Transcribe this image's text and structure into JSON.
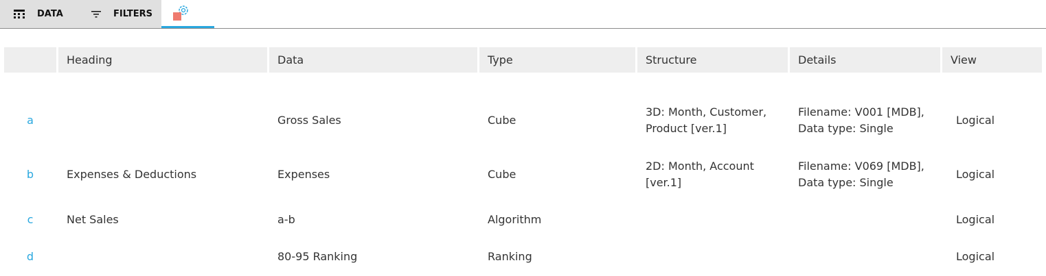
{
  "tabs": [
    {
      "label": "DATA",
      "icon": "grid-icon"
    },
    {
      "label": "FILTERS",
      "icon": "filter-icon"
    },
    {
      "icon": "settings-icon",
      "active": true
    }
  ],
  "table": {
    "columns": [
      "",
      "Heading",
      "Data",
      "Type",
      "Structure",
      "Details",
      "View"
    ],
    "rows": [
      {
        "id": "a",
        "heading": "",
        "data": "Gross Sales",
        "type": "Cube",
        "structure": "3D: Month, Customer, Product [ver.1]",
        "details": "Filename: V001 [MDB], Data type: Single",
        "view": "Logical"
      },
      {
        "id": "b",
        "heading": "Expenses & Deductions",
        "data": "Expenses",
        "type": "Cube",
        "structure": "2D: Month, Account [ver.1]",
        "details": "Filename: V069 [MDB], Data type: Single",
        "view": "Logical"
      },
      {
        "id": "c",
        "heading": "Net Sales",
        "data": "a-b",
        "type": "Algorithm",
        "structure": "",
        "details": "",
        "view": "Logical"
      },
      {
        "id": "d",
        "heading": "",
        "data": "80-95 Ranking",
        "type": "Ranking",
        "structure": "",
        "details": "",
        "view": "Logical"
      }
    ]
  },
  "colors": {
    "accent": "#2aa8df",
    "marker": "#ef7b6f"
  }
}
